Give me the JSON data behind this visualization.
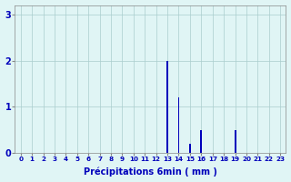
{
  "values": [
    0,
    0,
    0,
    0,
    0,
    0,
    0,
    0,
    0,
    0,
    0,
    0,
    0,
    2.0,
    1.2,
    0.2,
    0.5,
    0,
    0,
    0.5,
    0,
    0,
    0,
    0
  ],
  "x_labels": [
    "0",
    "1",
    "2",
    "3",
    "4",
    "5",
    "6",
    "7",
    "8",
    "9",
    "10",
    "11",
    "12",
    "13",
    "14",
    "15",
    "16",
    "17",
    "18",
    "19",
    "20",
    "21",
    "22",
    "23"
  ],
  "xlabel": "Précipitations 6min ( mm )",
  "ylim": [
    0,
    3.2
  ],
  "yticks": [
    0,
    1,
    2,
    3
  ],
  "bar_color": "#0000bb",
  "background_color": "#e0f5f5",
  "grid_color": "#aacece",
  "axis_color": "#555555",
  "tick_color": "#0000bb",
  "label_color": "#0000bb",
  "bar_width": 0.15
}
